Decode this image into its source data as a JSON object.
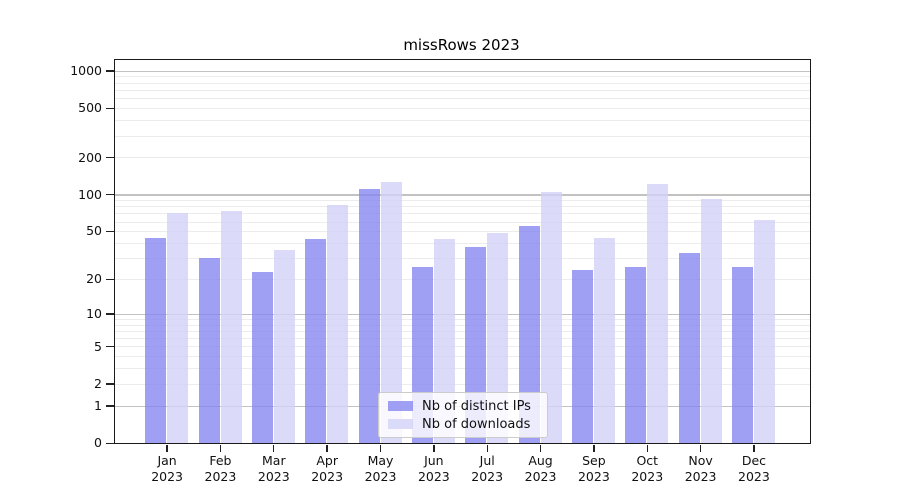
{
  "title": "missRows 2023",
  "chart_data": {
    "type": "bar",
    "title": "missRows 2023",
    "x_categories": [
      "Jan",
      "Feb",
      "Mar",
      "Apr",
      "May",
      "Jun",
      "Jul",
      "Aug",
      "Sep",
      "Oct",
      "Nov",
      "Dec"
    ],
    "x_year": "2023",
    "series": [
      {
        "name": "Nb of distinct IPs",
        "color": "rgba(132,132,240,0.78)",
        "values": [
          44,
          30,
          23,
          43,
          110,
          25,
          37,
          55,
          24,
          25,
          33,
          25
        ]
      },
      {
        "name": "Nb of downloads",
        "color": "rgba(210,210,247,0.8)",
        "values": [
          70,
          73,
          35,
          82,
          125,
          43,
          48,
          104,
          44,
          121,
          92,
          62
        ]
      }
    ],
    "y_scale": "log1p",
    "y_ticks": [
      "1000",
      "500",
      "200",
      "100",
      "50",
      "20",
      "10",
      "5",
      "2",
      "1",
      "0"
    ],
    "ylim": [
      0,
      1240
    ],
    "grid": true,
    "legend_position": "lower center"
  }
}
